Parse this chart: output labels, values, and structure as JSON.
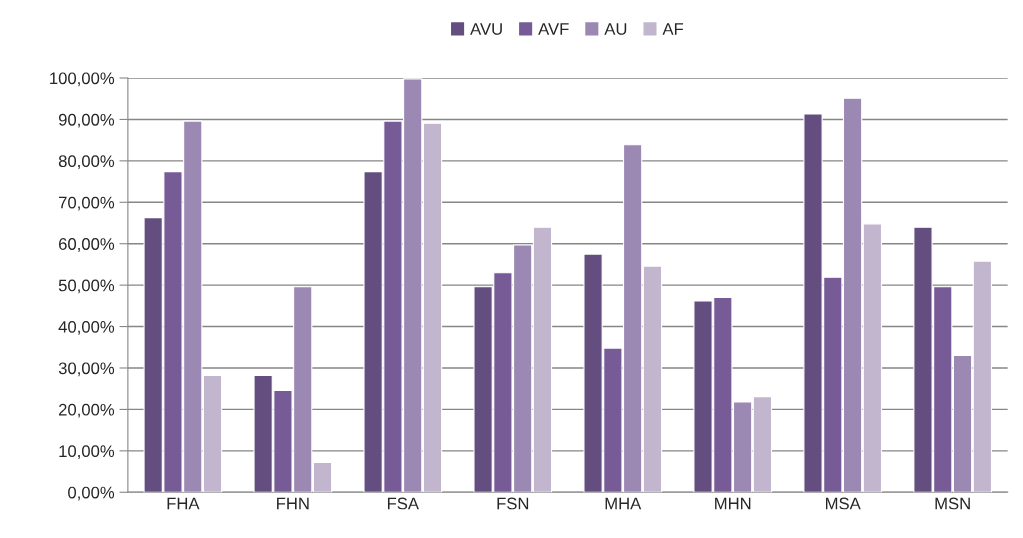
{
  "chart_data": {
    "type": "bar",
    "categories": [
      "FHA",
      "FHN",
      "FSA",
      "FSN",
      "MHA",
      "MHN",
      "MSA",
      "MSN"
    ],
    "series": [
      {
        "name": "AVU",
        "color": "#634e7f",
        "values": [
          66.3,
          28.2,
          77.4,
          49.6,
          57.5,
          46.2,
          91.3,
          64.0
        ]
      },
      {
        "name": "AVF",
        "color": "#765b96",
        "values": [
          77.4,
          24.6,
          89.6,
          53.0,
          34.8,
          47.0,
          51.9,
          49.6
        ]
      },
      {
        "name": "AU",
        "color": "#9b88b3",
        "values": [
          89.6,
          49.6,
          99.8,
          59.7,
          83.9,
          21.8,
          95.1,
          33.0
        ]
      },
      {
        "name": "AF",
        "color": "#c2b6cf",
        "values": [
          28.2,
          7.2,
          89.1,
          64.0,
          54.6,
          23.1,
          64.8,
          55.8
        ]
      }
    ],
    "ylim": [
      0,
      100
    ],
    "yticks": [
      {
        "value": 0,
        "label": "0,00%"
      },
      {
        "value": 10,
        "label": "10,00%"
      },
      {
        "value": 20,
        "label": "20,00%"
      },
      {
        "value": 30,
        "label": "30,00%"
      },
      {
        "value": 40,
        "label": "40,00%"
      },
      {
        "value": 50,
        "label": "50,00%"
      },
      {
        "value": 60,
        "label": "60,00%"
      },
      {
        "value": 70,
        "label": "70,00%"
      },
      {
        "value": 80,
        "label": "80,00%"
      },
      {
        "value": 90,
        "label": "90,00%"
      },
      {
        "value": 100,
        "label": "100,00%"
      }
    ],
    "grid": "y",
    "legend": "top"
  }
}
